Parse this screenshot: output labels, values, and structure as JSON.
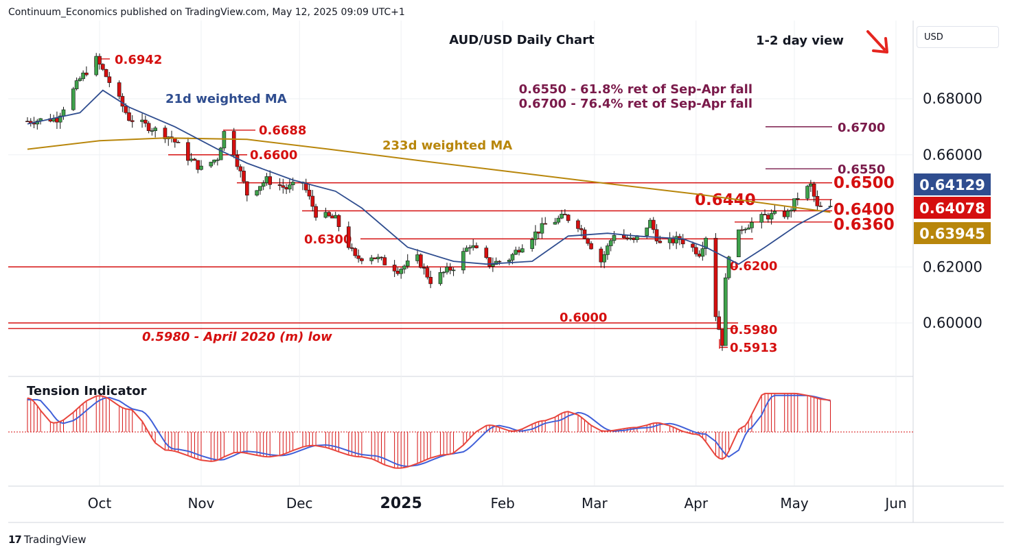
{
  "header": {
    "publisher": "Continuum_Economics published on TradingView.com, May 12, 2025 09:09 UTC+1"
  },
  "footer": {
    "brand": "TradingView",
    "brand_icon": "tradingview-logo-icon"
  },
  "currency_button": {
    "label": "USD"
  },
  "chart_data": [
    {
      "type": "candlestick",
      "title": "AUD/USD Daily Chart",
      "subtitle": "1-2 day view",
      "bias_arrow": {
        "direction": "down",
        "color": "#e5251f"
      },
      "x_ticks": [
        "Oct",
        "Nov",
        "Dec",
        "2025",
        "Feb",
        "Mar",
        "Apr",
        "May",
        "Jun"
      ],
      "y_ticks": [
        "0.68000",
        "0.66000",
        "0.62000",
        "0.60000"
      ],
      "ylim": [
        0.583,
        0.704
      ],
      "price_tags": [
        {
          "label": "0.64129",
          "color": "#2f4d8f"
        },
        {
          "label": "0.64078",
          "color": "#d50f0f"
        },
        {
          "label": "0.63945",
          "color": "#b8860b"
        }
      ],
      "levels": [
        {
          "label": "0.6942",
          "value": 0.6942,
          "color": "#d50f0f"
        },
        {
          "label": "0.6688",
          "value": 0.6688,
          "color": "#d50f0f"
        },
        {
          "label": "0.6600",
          "value": 0.66,
          "color": "#d50f0f"
        },
        {
          "label": "0.6700",
          "value": 0.67,
          "color": "#7a1a4a"
        },
        {
          "label": "0.6550",
          "value": 0.655,
          "color": "#7a1a4a"
        },
        {
          "label": "0.6500",
          "value": 0.65,
          "color": "#d50f0f"
        },
        {
          "label": "0.6440",
          "value": 0.644,
          "color": "#d50f0f"
        },
        {
          "label": "0.6400",
          "value": 0.64,
          "color": "#d50f0f"
        },
        {
          "label": "0.6360",
          "value": 0.636,
          "color": "#d50f0f"
        },
        {
          "label": "0.6300",
          "value": 0.63,
          "color": "#d50f0f"
        },
        {
          "label": "0.6200",
          "value": 0.62,
          "color": "#d50f0f"
        },
        {
          "label": "0.6000",
          "value": 0.6,
          "color": "#d50f0f"
        },
        {
          "label": "0.5980",
          "value": 0.598,
          "color": "#d50f0f"
        },
        {
          "label": "0.5913",
          "value": 0.5913,
          "color": "#d50f0f"
        }
      ],
      "annotations": [
        "21d weighted MA",
        "233d weighted MA",
        "0.6550 - 61.8% ret of Sep-Apr fall",
        "0.6700 - 76.4% ret of Sep-Apr fall",
        "0.5980 - April 2020 (m) low"
      ],
      "series": [
        {
          "name": "21d weighted MA",
          "color": "#2f4d8f"
        },
        {
          "name": "233d weighted MA",
          "color": "#b8860b"
        }
      ],
      "anchors": [
        [
          "2024-09-09",
          0.672
        ],
        [
          "2024-09-18",
          0.673
        ],
        [
          "2024-09-25",
          0.687
        ],
        [
          "2024-09-30",
          0.694
        ],
        [
          "2024-10-04",
          0.686
        ],
        [
          "2024-10-10",
          0.673
        ],
        [
          "2024-10-16",
          0.67
        ],
        [
          "2024-10-23",
          0.666
        ],
        [
          "2024-10-28",
          0.659
        ],
        [
          "2024-11-01",
          0.655
        ],
        [
          "2024-11-06",
          0.659
        ],
        [
          "2024-11-08",
          0.668
        ],
        [
          "2024-11-11",
          0.661
        ],
        [
          "2024-11-15",
          0.646
        ],
        [
          "2024-11-21",
          0.651
        ],
        [
          "2024-11-27",
          0.648
        ],
        [
          "2024-12-02",
          0.65
        ],
        [
          "2024-12-06",
          0.639
        ],
        [
          "2024-12-12",
          0.637
        ],
        [
          "2024-12-18",
          0.623
        ],
        [
          "2024-12-23",
          0.624
        ],
        [
          "2024-12-31",
          0.619
        ],
        [
          "2025-01-06",
          0.623
        ],
        [
          "2025-01-10",
          0.615
        ],
        [
          "2025-01-17",
          0.62
        ],
        [
          "2025-01-22",
          0.628
        ],
        [
          "2025-01-28",
          0.621
        ],
        [
          "2025-02-03",
          0.623
        ],
        [
          "2025-02-07",
          0.628
        ],
        [
          "2025-02-14",
          0.635
        ],
        [
          "2025-02-20",
          0.638
        ],
        [
          "2025-02-24",
          0.635
        ],
        [
          "2025-03-03",
          0.622
        ],
        [
          "2025-03-07",
          0.632
        ],
        [
          "2025-03-13",
          0.629
        ],
        [
          "2025-03-18",
          0.636
        ],
        [
          "2025-03-21",
          0.628
        ],
        [
          "2025-03-27",
          0.63
        ],
        [
          "2025-04-02",
          0.625
        ],
        [
          "2025-04-04",
          0.631
        ],
        [
          "2025-04-07",
          0.603
        ],
        [
          "2025-04-08",
          0.598
        ],
        [
          "2025-04-09",
          0.593
        ],
        [
          "2025-04-10",
          0.615
        ],
        [
          "2025-04-11",
          0.625
        ],
        [
          "2025-04-15",
          0.634
        ],
        [
          "2025-04-22",
          0.638
        ],
        [
          "2025-04-29",
          0.639
        ],
        [
          "2025-05-02",
          0.645
        ],
        [
          "2025-05-06",
          0.649
        ],
        [
          "2025-05-08",
          0.641
        ],
        [
          "2025-05-12",
          0.6408
        ]
      ],
      "ma21_points": [
        [
          "2024-09-09",
          0.671
        ],
        [
          "2024-09-25",
          0.675
        ],
        [
          "2024-10-02",
          0.683
        ],
        [
          "2024-10-10",
          0.677
        ],
        [
          "2024-10-24",
          0.67
        ],
        [
          "2024-11-06",
          0.662
        ],
        [
          "2024-11-15",
          0.657
        ],
        [
          "2024-11-29",
          0.651
        ],
        [
          "2024-12-12",
          0.647
        ],
        [
          "2024-12-20",
          0.641
        ],
        [
          "2025-01-03",
          0.627
        ],
        [
          "2025-01-17",
          0.622
        ],
        [
          "2025-01-27",
          0.621
        ],
        [
          "2025-02-10",
          0.622
        ],
        [
          "2025-02-21",
          0.631
        ],
        [
          "2025-03-05",
          0.632
        ],
        [
          "2025-03-14",
          0.631
        ],
        [
          "2025-03-28",
          0.63
        ],
        [
          "2025-04-04",
          0.627
        ],
        [
          "2025-04-14",
          0.621
        ],
        [
          "2025-04-22",
          0.627
        ],
        [
          "2025-05-02",
          0.635
        ],
        [
          "2025-05-12",
          0.6413
        ]
      ],
      "ma233_points": [
        [
          "2024-09-09",
          0.662
        ],
        [
          "2024-10-01",
          0.665
        ],
        [
          "2024-10-21",
          0.666
        ],
        [
          "2024-11-15",
          0.6655
        ],
        [
          "2024-12-10",
          0.662
        ],
        [
          "2025-01-06",
          0.658
        ],
        [
          "2025-02-03",
          0.654
        ],
        [
          "2025-03-03",
          0.65
        ],
        [
          "2025-04-01",
          0.646
        ],
        [
          "2025-05-12",
          0.6395
        ]
      ],
      "tension_indicator": {
        "label": "Tension Indicator",
        "points": [
          [
            "2024-09-09",
            0.75
          ],
          [
            "2024-09-17",
            0.2
          ],
          [
            "2024-10-01",
            0.8
          ],
          [
            "2024-10-10",
            0.5
          ],
          [
            "2024-10-21",
            -0.4
          ],
          [
            "2024-11-04",
            -0.65
          ],
          [
            "2024-11-12",
            -0.45
          ],
          [
            "2024-11-22",
            -0.55
          ],
          [
            "2024-12-05",
            -0.3
          ],
          [
            "2024-12-20",
            -0.55
          ],
          [
            "2024-12-31",
            -0.8
          ],
          [
            "2025-01-15",
            -0.5
          ],
          [
            "2025-01-28",
            0.15
          ],
          [
            "2025-02-04",
            0.02
          ],
          [
            "2025-02-14",
            0.25
          ],
          [
            "2025-02-21",
            0.45
          ],
          [
            "2025-03-04",
            0.02
          ],
          [
            "2025-03-14",
            0.1
          ],
          [
            "2025-03-20",
            0.2
          ],
          [
            "2025-04-01",
            -0.05
          ],
          [
            "2025-04-09",
            -0.6
          ],
          [
            "2025-04-15",
            0.1
          ],
          [
            "2025-04-22",
            0.85
          ],
          [
            "2025-05-01",
            0.85
          ],
          [
            "2025-05-12",
            0.7
          ]
        ]
      }
    }
  ]
}
